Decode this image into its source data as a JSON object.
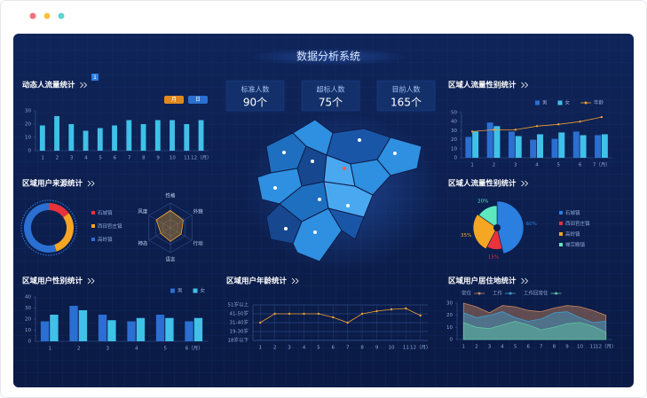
{
  "title": "数据分析系统",
  "stats": [
    {
      "label": "标准人数",
      "value": "90个"
    },
    {
      "label": "超标人数",
      "value": "75个"
    },
    {
      "label": "目前人数",
      "value": "165个"
    }
  ],
  "chart_data": [
    {
      "type": "bar",
      "title": "动态人流量统计",
      "badge": "1",
      "buttons": [
        "月",
        "日"
      ],
      "categories": [
        "1",
        "2",
        "3",
        "4",
        "5",
        "6",
        "7",
        "8",
        "9",
        "10",
        "11",
        "12（月）"
      ],
      "values": [
        19,
        26,
        20,
        15,
        17,
        19,
        23,
        20,
        23,
        23,
        20,
        23
      ],
      "color": "#3fc1e8",
      "ylim": [
        0,
        30
      ],
      "yticks": [
        0,
        10,
        20,
        30
      ]
    },
    {
      "type": "bar",
      "title": "区域人流量性别统计",
      "categories": [
        "1",
        "2",
        "3",
        "4",
        "5",
        "6",
        "7（月）"
      ],
      "series": [
        {
          "name": "男",
          "color": "#2a6fd1",
          "values": [
            23,
            39,
            29,
            20,
            21,
            29,
            25
          ]
        },
        {
          "name": "女",
          "color": "#3fc1e8",
          "values": [
            29,
            35,
            24,
            26,
            28,
            25,
            26
          ]
        },
        {
          "name": "年龄",
          "color": "#f0a030",
          "type": "line",
          "values": [
            29,
            31,
            31,
            35,
            37,
            40,
            45
          ]
        }
      ],
      "ylim": [
        0,
        50
      ],
      "yticks": [
        0,
        10,
        20,
        30,
        40,
        50
      ]
    },
    {
      "type": "donut",
      "title": "区域用户来源统计",
      "categories": [
        "石城镇",
        "西田官庄镇",
        "高岭镇"
      ],
      "values": [
        15,
        30,
        55
      ],
      "colors": [
        "#e8323c",
        "#f5a623",
        "#2a6fd1"
      ]
    },
    {
      "type": "radar",
      "categories": [
        "性格",
        "外貌",
        "行动",
        "语言",
        "神态",
        "风度"
      ],
      "values": [
        70,
        60,
        50,
        55,
        45,
        65
      ],
      "rlim": [
        0,
        100
      ],
      "color": "#f5a623"
    },
    {
      "type": "pie",
      "title": "区域人流量性别统计",
      "categories": [
        "石城镇",
        "西田官庄镇",
        "高岭镇",
        "禅宗殿镇"
      ],
      "values": [
        60,
        15,
        35,
        20
      ],
      "value_labels": [
        "60%",
        "15%",
        "35%",
        "20%"
      ],
      "colors": [
        "#2a7fe0",
        "#e8323c",
        "#f5a623",
        "#5ee8c0"
      ]
    },
    {
      "type": "bar",
      "title": "区域用户性别统计",
      "categories": [
        "1",
        "2",
        "3",
        "4",
        "5",
        "6（月）"
      ],
      "series": [
        {
          "name": "男",
          "color": "#2a6fd1",
          "values": [
            18,
            32,
            24,
            18,
            24,
            18
          ]
        },
        {
          "name": "女",
          "color": "#3fc1e8",
          "values": [
            24,
            28,
            19,
            21,
            21,
            21
          ]
        }
      ],
      "ylim": [
        0,
        40
      ],
      "yticks": [
        0,
        10,
        20,
        30,
        40
      ]
    },
    {
      "type": "line",
      "title": "区域用户年龄统计",
      "categories": [
        "1",
        "2",
        "3",
        "4",
        "5",
        "6",
        "7",
        "8",
        "9",
        "10",
        "11",
        "12（月）"
      ],
      "values": [
        2,
        3,
        3,
        3,
        3,
        2.6,
        2,
        3,
        3.3,
        3.5,
        3.6,
        2.8
      ],
      "color": "#f0a030",
      "ylim": [
        0,
        4
      ],
      "grid": true,
      "yticks": [
        {
          "value": 0,
          "label": "18岁以下"
        },
        {
          "value": 1,
          "label": "19-30岁"
        },
        {
          "value": 2,
          "label": "31-40岁"
        },
        {
          "value": 3,
          "label": "41-50岁"
        },
        {
          "value": 4,
          "label": "51岁以上"
        }
      ]
    },
    {
      "type": "area",
      "title": "区域用户居住地统计",
      "categories": [
        "1",
        "2",
        "3",
        "4",
        "5",
        "6",
        "7",
        "8",
        "9",
        "10",
        "11",
        "12（月）"
      ],
      "series": [
        {
          "name": "常住",
          "color": "#c8865a",
          "values": [
            30,
            27,
            22,
            28,
            27,
            24,
            23,
            26,
            28,
            27,
            24,
            20
          ]
        },
        {
          "name": "工作",
          "color": "#3fa0d0",
          "values": [
            22,
            18,
            20,
            23,
            18,
            15,
            17,
            22,
            23,
            18,
            14,
            15
          ]
        },
        {
          "name": "工作回常住",
          "color": "#5ec4a0",
          "values": [
            14,
            10,
            9,
            12,
            15,
            12,
            8,
            10,
            13,
            14,
            11,
            6
          ]
        }
      ],
      "ylim": [
        0,
        30
      ],
      "yticks": [
        0,
        10,
        20,
        30
      ]
    }
  ]
}
